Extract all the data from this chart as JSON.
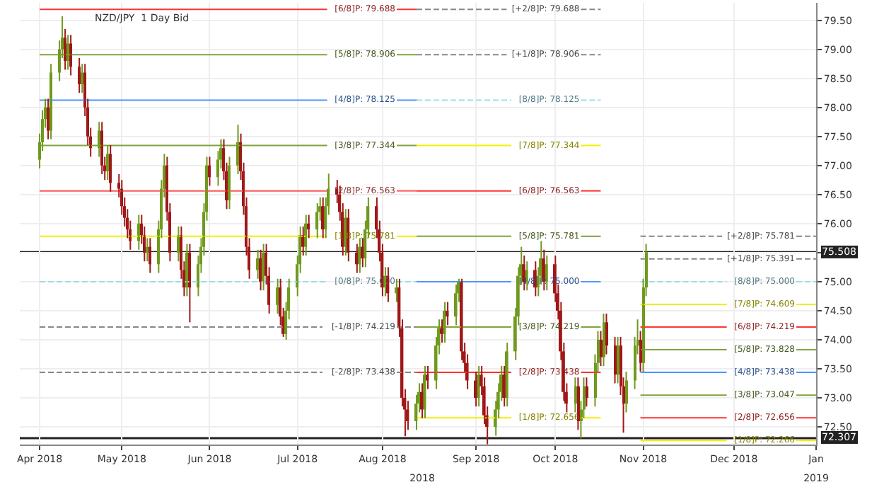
{
  "chart_data": {
    "type": "candlestick",
    "title": "NZD/JPY  1 Day Bid",
    "x": [
      "2018-04-02",
      "2018-04-03",
      "2018-04-04",
      "2018-04-05",
      "2018-04-06",
      "2018-04-09",
      "2018-04-10",
      "2018-04-11",
      "2018-04-12",
      "2018-04-13",
      "2018-04-16",
      "2018-04-17",
      "2018-04-18",
      "2018-04-19",
      "2018-04-20",
      "2018-04-23",
      "2018-04-24",
      "2018-04-25",
      "2018-04-26",
      "2018-04-27",
      "2018-04-30",
      "2018-05-01",
      "2018-05-02",
      "2018-05-03",
      "2018-05-04",
      "2018-05-07",
      "2018-05-08",
      "2018-05-09",
      "2018-05-10",
      "2018-05-11",
      "2018-05-14",
      "2018-05-15",
      "2018-05-16",
      "2018-05-17",
      "2018-05-18",
      "2018-05-21",
      "2018-05-22",
      "2018-05-23",
      "2018-05-24",
      "2018-05-25",
      "2018-05-28",
      "2018-05-29",
      "2018-05-30",
      "2018-05-31",
      "2018-06-01",
      "2018-06-04",
      "2018-06-05",
      "2018-06-06",
      "2018-06-07",
      "2018-06-08",
      "2018-06-11",
      "2018-06-12",
      "2018-06-13",
      "2018-06-14",
      "2018-06-15",
      "2018-06-18",
      "2018-06-19",
      "2018-06-20",
      "2018-06-21",
      "2018-06-22",
      "2018-06-25",
      "2018-06-26",
      "2018-06-27",
      "2018-06-28",
      "2018-06-29",
      "2018-07-02",
      "2018-07-03",
      "2018-07-04",
      "2018-07-05",
      "2018-07-06",
      "2018-07-09",
      "2018-07-10",
      "2018-07-11",
      "2018-07-12",
      "2018-07-13",
      "2018-07-16",
      "2018-07-17",
      "2018-07-18",
      "2018-07-19",
      "2018-07-20",
      "2018-07-23",
      "2018-07-24",
      "2018-07-25",
      "2018-07-26",
      "2018-07-27",
      "2018-07-30",
      "2018-07-31",
      "2018-08-01",
      "2018-08-02",
      "2018-08-03",
      "2018-08-06",
      "2018-08-07",
      "2018-08-08",
      "2018-08-09",
      "2018-08-10",
      "2018-08-13",
      "2018-08-14",
      "2018-08-15",
      "2018-08-16",
      "2018-08-17",
      "2018-08-20",
      "2018-08-21",
      "2018-08-22",
      "2018-08-23",
      "2018-08-24",
      "2018-08-27",
      "2018-08-28",
      "2018-08-29",
      "2018-08-30",
      "2018-08-31",
      "2018-09-03",
      "2018-09-04",
      "2018-09-05",
      "2018-09-06",
      "2018-09-07",
      "2018-09-10",
      "2018-09-11",
      "2018-09-12",
      "2018-09-13",
      "2018-09-14",
      "2018-09-17",
      "2018-09-18",
      "2018-09-19",
      "2018-09-20",
      "2018-09-21",
      "2018-09-24",
      "2018-09-25",
      "2018-09-26",
      "2018-09-27",
      "2018-09-28",
      "2018-10-01",
      "2018-10-02",
      "2018-10-03",
      "2018-10-04",
      "2018-10-05",
      "2018-10-08",
      "2018-10-09",
      "2018-10-10",
      "2018-10-11",
      "2018-10-12",
      "2018-10-15",
      "2018-10-16",
      "2018-10-17",
      "2018-10-18",
      "2018-10-19",
      "2018-10-22",
      "2018-10-23",
      "2018-10-24",
      "2018-10-25",
      "2018-10-26",
      "2018-10-29",
      "2018-10-30",
      "2018-10-31",
      "2018-11-01",
      "2018-11-02"
    ],
    "ohlc": [
      [
        77.1,
        77.55,
        76.95,
        77.4
      ],
      [
        77.4,
        77.95,
        77.25,
        77.8
      ],
      [
        77.8,
        78.15,
        77.65,
        78.0
      ],
      [
        78.0,
        78.15,
        77.45,
        77.6
      ],
      [
        77.6,
        78.75,
        77.45,
        78.6
      ],
      [
        78.6,
        79.15,
        78.45,
        79.0
      ],
      [
        79.0,
        79.57,
        78.85,
        79.2
      ],
      [
        79.2,
        79.35,
        78.65,
        78.8
      ],
      [
        78.8,
        79.25,
        78.65,
        79.1
      ],
      [
        79.1,
        79.25,
        78.55,
        78.7
      ],
      [
        78.7,
        78.85,
        78.25,
        78.4
      ],
      [
        78.4,
        78.75,
        78.25,
        78.6
      ],
      [
        78.6,
        78.75,
        77.85,
        78.0
      ],
      [
        78.0,
        78.15,
        77.35,
        77.5
      ],
      [
        77.5,
        77.65,
        77.15,
        77.3
      ],
      [
        77.3,
        77.75,
        77.15,
        77.6
      ],
      [
        77.6,
        77.75,
        76.85,
        77.0
      ],
      [
        77.0,
        77.15,
        76.75,
        76.9
      ],
      [
        76.9,
        77.35,
        76.75,
        77.2
      ],
      [
        77.2,
        77.35,
        76.55,
        76.7
      ],
      [
        76.7,
        76.85,
        76.45,
        76.6
      ],
      [
        76.6,
        76.75,
        76.15,
        76.3
      ],
      [
        76.3,
        76.45,
        75.95,
        76.1
      ],
      [
        76.1,
        76.25,
        75.75,
        75.9
      ],
      [
        75.9,
        76.05,
        75.55,
        75.7
      ],
      [
        75.7,
        76.15,
        75.55,
        76.0
      ],
      [
        76.0,
        76.15,
        75.65,
        75.8
      ],
      [
        75.8,
        75.95,
        75.35,
        75.5
      ],
      [
        75.5,
        75.75,
        75.35,
        75.6
      ],
      [
        75.6,
        75.75,
        75.15,
        75.3
      ],
      [
        75.3,
        76.05,
        75.15,
        75.9
      ],
      [
        75.9,
        76.75,
        75.75,
        76.6
      ],
      [
        76.6,
        77.2,
        76.45,
        77.0
      ],
      [
        77.0,
        77.15,
        76.05,
        76.2
      ],
      [
        76.2,
        76.35,
        75.35,
        75.5
      ],
      [
        75.5,
        75.95,
        75.35,
        75.8
      ],
      [
        75.8,
        75.95,
        75.05,
        75.2
      ],
      [
        75.2,
        75.35,
        74.75,
        74.9
      ],
      [
        74.9,
        75.65,
        74.75,
        75.5
      ],
      [
        75.5,
        75.65,
        74.3,
        74.9
      ],
      [
        74.9,
        75.45,
        74.75,
        75.3
      ],
      [
        75.3,
        75.75,
        75.15,
        75.6
      ],
      [
        75.6,
        76.35,
        75.45,
        76.2
      ],
      [
        76.2,
        77.15,
        76.05,
        77.0
      ],
      [
        77.0,
        77.15,
        76.65,
        76.8
      ],
      [
        76.8,
        77.25,
        76.65,
        77.1
      ],
      [
        77.1,
        77.45,
        76.95,
        77.3
      ],
      [
        77.3,
        77.45,
        76.75,
        76.9
      ],
      [
        76.9,
        77.05,
        76.25,
        76.4
      ],
      [
        76.4,
        77.15,
        76.25,
        77.0
      ],
      [
        77.0,
        77.7,
        76.85,
        77.4
      ],
      [
        77.4,
        77.55,
        76.75,
        76.9
      ],
      [
        76.9,
        77.05,
        76.15,
        76.3
      ],
      [
        76.3,
        76.45,
        75.45,
        75.6
      ],
      [
        75.6,
        75.75,
        75.05,
        75.2
      ],
      [
        75.2,
        75.55,
        75.05,
        75.4
      ],
      [
        75.4,
        75.55,
        74.85,
        75.0
      ],
      [
        75.0,
        75.65,
        74.85,
        75.5
      ],
      [
        75.5,
        75.65,
        74.95,
        75.1
      ],
      [
        75.1,
        75.25,
        74.45,
        74.6
      ],
      [
        74.6,
        75.05,
        74.45,
        74.9
      ],
      [
        74.9,
        75.05,
        74.25,
        74.4
      ],
      [
        74.4,
        74.55,
        74.05,
        74.1
      ],
      [
        74.1,
        74.65,
        74.0,
        74.5
      ],
      [
        74.5,
        75.05,
        74.35,
        74.9
      ],
      [
        74.9,
        75.45,
        74.75,
        75.3
      ],
      [
        75.3,
        75.95,
        75.15,
        75.8
      ],
      [
        75.8,
        75.95,
        75.45,
        75.6
      ],
      [
        75.6,
        76.15,
        75.45,
        76.0
      ],
      [
        76.0,
        76.15,
        75.75,
        75.9
      ],
      [
        75.9,
        76.35,
        75.75,
        76.2
      ],
      [
        76.2,
        76.45,
        76.05,
        76.3
      ],
      [
        76.3,
        76.45,
        75.75,
        75.9
      ],
      [
        75.9,
        76.45,
        75.75,
        76.3
      ],
      [
        76.3,
        76.86,
        76.15,
        76.6
      ],
      [
        76.6,
        76.75,
        76.35,
        76.5
      ],
      [
        76.5,
        76.65,
        76.05,
        76.2
      ],
      [
        76.2,
        76.35,
        75.45,
        75.6
      ],
      [
        75.6,
        76.25,
        75.45,
        76.1
      ],
      [
        76.1,
        76.25,
        75.35,
        75.5
      ],
      [
        75.5,
        75.65,
        75.15,
        75.3
      ],
      [
        75.3,
        75.75,
        75.15,
        75.6
      ],
      [
        75.6,
        75.75,
        75.25,
        75.4
      ],
      [
        75.4,
        76.05,
        75.25,
        75.9
      ],
      [
        75.9,
        76.45,
        75.75,
        76.3
      ],
      [
        76.3,
        76.45,
        75.75,
        75.9
      ],
      [
        75.9,
        76.05,
        75.35,
        75.5
      ],
      [
        75.5,
        75.65,
        74.75,
        74.9
      ],
      [
        74.9,
        75.25,
        74.75,
        75.1
      ],
      [
        75.1,
        75.25,
        74.65,
        74.8
      ],
      [
        74.8,
        75.05,
        74.65,
        74.9
      ],
      [
        74.9,
        75.05,
        74.05,
        74.2
      ],
      [
        74.2,
        74.35,
        72.85,
        73.0
      ],
      [
        73.0,
        73.15,
        72.34,
        72.8
      ],
      [
        72.8,
        72.95,
        72.45,
        72.6
      ],
      [
        72.6,
        73.05,
        72.45,
        72.9
      ],
      [
        72.9,
        73.25,
        72.75,
        73.1
      ],
      [
        73.1,
        73.25,
        72.65,
        72.8
      ],
      [
        72.8,
        73.55,
        72.65,
        73.4
      ],
      [
        73.4,
        73.55,
        73.15,
        73.3
      ],
      [
        73.3,
        74.05,
        73.15,
        73.9
      ],
      [
        73.9,
        74.35,
        73.75,
        74.2
      ],
      [
        74.2,
        74.35,
        73.95,
        74.1
      ],
      [
        74.1,
        74.65,
        73.95,
        74.5
      ],
      [
        74.5,
        74.65,
        74.25,
        74.4
      ],
      [
        74.4,
        74.95,
        74.25,
        74.8
      ],
      [
        74.8,
        75.05,
        74.65,
        75.0
      ],
      [
        75.0,
        75.05,
        73.65,
        73.8
      ],
      [
        73.8,
        73.95,
        73.45,
        73.6
      ],
      [
        73.6,
        73.75,
        73.15,
        73.3
      ],
      [
        73.3,
        73.45,
        72.85,
        73.0
      ],
      [
        73.0,
        73.55,
        72.85,
        73.4
      ],
      [
        73.4,
        73.55,
        73.05,
        73.2
      ],
      [
        73.2,
        73.35,
        72.55,
        72.7
      ],
      [
        72.7,
        72.85,
        72.2,
        72.5
      ],
      [
        72.5,
        72.95,
        72.35,
        72.8
      ],
      [
        72.8,
        73.25,
        72.65,
        73.1
      ],
      [
        73.1,
        73.55,
        72.95,
        73.4
      ],
      [
        73.4,
        73.55,
        72.85,
        73.0
      ],
      [
        73.0,
        73.95,
        72.85,
        73.8
      ],
      [
        73.8,
        74.55,
        73.65,
        74.4
      ],
      [
        74.4,
        75.25,
        74.25,
        75.1
      ],
      [
        75.1,
        75.6,
        74.95,
        75.3
      ],
      [
        75.3,
        75.45,
        74.85,
        75.0
      ],
      [
        75.0,
        75.35,
        74.85,
        75.2
      ],
      [
        75.2,
        75.35,
        74.75,
        74.9
      ],
      [
        74.9,
        75.25,
        74.75,
        75.1
      ],
      [
        75.1,
        75.7,
        74.95,
        75.4
      ],
      [
        75.4,
        75.55,
        74.85,
        75.0
      ],
      [
        75.0,
        75.45,
        74.85,
        75.3
      ],
      [
        75.3,
        75.45,
        74.65,
        74.8
      ],
      [
        74.8,
        74.95,
        74.35,
        74.5
      ],
      [
        74.5,
        74.65,
        73.65,
        73.8
      ],
      [
        73.8,
        73.95,
        72.95,
        73.1
      ],
      [
        73.1,
        73.25,
        72.75,
        72.9
      ],
      [
        72.9,
        73.35,
        72.75,
        73.2
      ],
      [
        73.2,
        73.35,
        72.45,
        72.6
      ],
      [
        72.6,
        72.95,
        72.3,
        72.8
      ],
      [
        72.8,
        73.35,
        72.65,
        73.2
      ],
      [
        73.2,
        73.35,
        72.85,
        73.0
      ],
      [
        73.0,
        73.75,
        72.85,
        73.6
      ],
      [
        73.6,
        74.15,
        73.45,
        74.0
      ],
      [
        74.0,
        74.15,
        73.55,
        73.7
      ],
      [
        73.7,
        74.45,
        73.55,
        74.3
      ],
      [
        74.3,
        74.45,
        73.75,
        73.9
      ],
      [
        73.9,
        74.05,
        73.25,
        73.4
      ],
      [
        73.4,
        74.05,
        73.25,
        73.9
      ],
      [
        73.9,
        74.05,
        73.05,
        73.2
      ],
      [
        73.2,
        73.35,
        72.4,
        72.9
      ],
      [
        72.9,
        73.45,
        72.75,
        73.3
      ],
      [
        73.3,
        74.05,
        73.15,
        73.9
      ],
      [
        73.9,
        74.35,
        73.75,
        74.0
      ],
      [
        74.0,
        74.15,
        73.45,
        73.6
      ],
      [
        73.6,
        75.05,
        73.45,
        74.9
      ],
      [
        74.9,
        75.65,
        74.75,
        75.508
      ]
    ],
    "series": [
      {
        "type": "line",
        "name": "[6/8]P: 79.688",
        "color": "#ff3333",
        "x": [
          "2018-04-02",
          "2018-08-13"
        ],
        "values": [
          79.688,
          79.688
        ]
      },
      {
        "type": "line",
        "name": "[5/8]P: 78.906",
        "color": "#80a33a",
        "x": [
          "2018-04-02",
          "2018-08-13"
        ],
        "values": [
          78.906,
          78.906
        ]
      },
      {
        "type": "line",
        "name": "[4/8]P: 78.125",
        "color": "#4d94ff",
        "x": [
          "2018-04-02",
          "2018-08-13"
        ],
        "values": [
          78.125,
          78.125
        ]
      },
      {
        "type": "line",
        "name": "[3/8]P: 77.344",
        "color": "#80a33a",
        "x": [
          "2018-04-02",
          "2018-08-13"
        ],
        "values": [
          77.344,
          77.344
        ]
      },
      {
        "type": "line",
        "name": "[2/8]P: 76.563",
        "color": "#ff5555",
        "x": [
          "2018-04-02",
          "2018-08-13"
        ],
        "values": [
          76.563,
          76.563
        ]
      },
      {
        "type": "line",
        "name": "[1/8]P: 75.781",
        "color": "#f0f000",
        "x": [
          "2018-04-02",
          "2018-08-13"
        ],
        "values": [
          75.781,
          75.781
        ]
      },
      {
        "type": "line",
        "name": "[0/8]P: 75.000",
        "color": "#99ddee",
        "line_style": "dashed",
        "x": [
          "2018-04-02",
          "2018-08-13"
        ],
        "values": [
          75.0,
          75.0
        ]
      },
      {
        "type": "line",
        "name": "[-1/8]P: 74.219",
        "color": "#888888",
        "line_style": "dashed",
        "x": [
          "2018-04-02",
          "2018-08-13"
        ],
        "values": [
          74.219,
          74.219
        ]
      },
      {
        "type": "line",
        "name": "[-2/8]P: 73.438",
        "color": "#888888",
        "line_style": "dashed",
        "x": [
          "2018-04-02",
          "2018-08-13"
        ],
        "values": [
          73.438,
          73.438
        ]
      },
      {
        "type": "line",
        "name": "[+2/8]P: 79.688",
        "color": "#888888",
        "line_style": "dashed",
        "x": [
          "2018-08-13",
          "2018-10-17"
        ],
        "values": [
          79.688,
          79.688
        ]
      },
      {
        "type": "line",
        "name": "[+1/8]P: 78.906",
        "color": "#888888",
        "line_style": "dashed",
        "x": [
          "2018-08-13",
          "2018-10-17"
        ],
        "values": [
          78.906,
          78.906
        ]
      },
      {
        "type": "line",
        "name": "[8/8]P: 78.125",
        "color": "#99ddee",
        "line_style": "dashed",
        "x": [
          "2018-08-13",
          "2018-10-17"
        ],
        "values": [
          78.125,
          78.125
        ]
      },
      {
        "type": "line",
        "name": "[7/8]P: 77.344",
        "color": "#f0f000",
        "x": [
          "2018-08-13",
          "2018-10-17"
        ],
        "values": [
          77.344,
          77.344
        ]
      },
      {
        "type": "line",
        "name": "[6/8]P: 76.563",
        "color": "#ff3333",
        "x": [
          "2018-08-13",
          "2018-10-17"
        ],
        "values": [
          76.563,
          76.563
        ]
      },
      {
        "type": "line",
        "name": "[5/8]P: 75.781",
        "color": "#80a33a",
        "x": [
          "2018-08-13",
          "2018-10-17"
        ],
        "values": [
          75.781,
          75.781
        ]
      },
      {
        "type": "line",
        "name": "[4/8]P: 75.000",
        "color": "#4d94ff",
        "x": [
          "2018-08-13",
          "2018-10-17"
        ],
        "values": [
          75.0,
          75.0
        ]
      },
      {
        "type": "line",
        "name": "[3/8]P: 74.219",
        "color": "#80a33a",
        "x": [
          "2018-08-13",
          "2018-10-17"
        ],
        "values": [
          74.219,
          74.219
        ]
      },
      {
        "type": "line",
        "name": "[2/8]P: 73.438",
        "color": "#ff3333",
        "x": [
          "2018-08-13",
          "2018-10-17"
        ],
        "values": [
          73.438,
          73.438
        ]
      },
      {
        "type": "line",
        "name": "[1/8]P: 72.656",
        "color": "#f0f000",
        "x": [
          "2018-08-13",
          "2018-10-17"
        ],
        "values": [
          72.656,
          72.656
        ]
      },
      {
        "type": "line",
        "name": "[+2/8]P: 75.781",
        "color": "#888888",
        "line_style": "dashed",
        "x": [
          "2018-10-31",
          "2019-01-01"
        ],
        "values": [
          75.781,
          75.781
        ]
      },
      {
        "type": "line",
        "name": "[+1/8]P: 75.391",
        "color": "#888888",
        "line_style": "dashed",
        "x": [
          "2018-10-31",
          "2019-01-01"
        ],
        "values": [
          75.391,
          75.391
        ]
      },
      {
        "type": "line",
        "name": "[8/8]P: 75.000",
        "color": "#99ddee",
        "line_style": "dashed",
        "x": [
          "2018-10-31",
          "2019-01-01"
        ],
        "values": [
          75.0,
          75.0
        ]
      },
      {
        "type": "line",
        "name": "[7/8]P: 74.609",
        "color": "#f0f000",
        "x": [
          "2018-10-31",
          "2019-01-01"
        ],
        "values": [
          74.609,
          74.609
        ]
      },
      {
        "type": "line",
        "name": "[6/8]P: 74.219",
        "color": "#ff3333",
        "x": [
          "2018-10-31",
          "2019-01-01"
        ],
        "values": [
          74.219,
          74.219
        ]
      },
      {
        "type": "line",
        "name": "[5/8]P: 73.828",
        "color": "#80a33a",
        "x": [
          "2018-10-31",
          "2019-01-01"
        ],
        "values": [
          73.828,
          73.828
        ]
      },
      {
        "type": "line",
        "name": "[4/8]P: 73.438",
        "color": "#4d94ff",
        "x": [
          "2018-10-31",
          "2019-01-01"
        ],
        "values": [
          73.438,
          73.438
        ]
      },
      {
        "type": "line",
        "name": "[3/8]P: 73.047",
        "color": "#80a33a",
        "x": [
          "2018-10-31",
          "2019-01-01"
        ],
        "values": [
          73.047,
          73.047
        ]
      },
      {
        "type": "line",
        "name": "[2/8]P: 72.656",
        "color": "#ff3333",
        "x": [
          "2018-10-31",
          "2019-01-01"
        ],
        "values": [
          72.656,
          72.656
        ]
      },
      {
        "type": "line",
        "name": "[1/8]P: 72.266",
        "color": "#f0f000",
        "x": [
          "2018-10-31",
          "2019-01-01"
        ],
        "values": [
          72.266,
          72.266
        ]
      }
    ],
    "ref_lines": [
      {
        "axis": "y",
        "value": 75.508,
        "label": "75.508",
        "color": "#222222"
      },
      {
        "axis": "y",
        "value": 72.307,
        "label": "72.307",
        "color": "#222222"
      }
    ],
    "xlim": [
      "2018-03-26",
      "2019-01-01"
    ],
    "xticks": [
      {
        "value": "2018-04-02",
        "label": "Apr 2018"
      },
      {
        "value": "2018-05-01",
        "label": "May 2018"
      },
      {
        "value": "2018-06-01",
        "label": "Jun 2018"
      },
      {
        "value": "2018-07-02",
        "label": "Jul 2018"
      },
      {
        "value": "2018-08-01",
        "label": "Aug 2018"
      },
      {
        "value": "2018-09-03",
        "label": "Sep 2018"
      },
      {
        "value": "2018-10-01",
        "label": "Oct 2018"
      },
      {
        "value": "2018-11-01",
        "label": "Nov 2018"
      },
      {
        "value": "2018-12-03",
        "label": "Dec 2018"
      },
      {
        "value": "2019-01-01",
        "label": "Jan"
      }
    ],
    "x2lim": [
      "2018-03-26",
      "2019-01-01"
    ],
    "x2ticks": [
      {
        "value": "2018-08-15",
        "label": "2018"
      },
      {
        "value": "2019-01-01",
        "label": "2019"
      }
    ],
    "ylim": [
      72.2,
      79.8
    ],
    "yticks": [
      {
        "value": 72.5,
        "label": "72.50"
      },
      {
        "value": 73.0,
        "label": "73.00"
      },
      {
        "value": 73.5,
        "label": "73.50"
      },
      {
        "value": 74.0,
        "label": "74.00"
      },
      {
        "value": 74.5,
        "label": "74.50"
      },
      {
        "value": 75.0,
        "label": "75.00"
      },
      {
        "value": 75.5,
        "label": null
      },
      {
        "value": 76.0,
        "label": "76.00"
      },
      {
        "value": 76.5,
        "label": "76.50"
      },
      {
        "value": 77.0,
        "label": "77.00"
      },
      {
        "value": 77.5,
        "label": "77.50"
      },
      {
        "value": 78.0,
        "label": "78.00"
      },
      {
        "value": 78.5,
        "label": "78.50"
      },
      {
        "value": 79.0,
        "label": "79.00"
      },
      {
        "value": 79.5,
        "label": "79.50"
      }
    ],
    "grid": true,
    "legend": false
  }
}
